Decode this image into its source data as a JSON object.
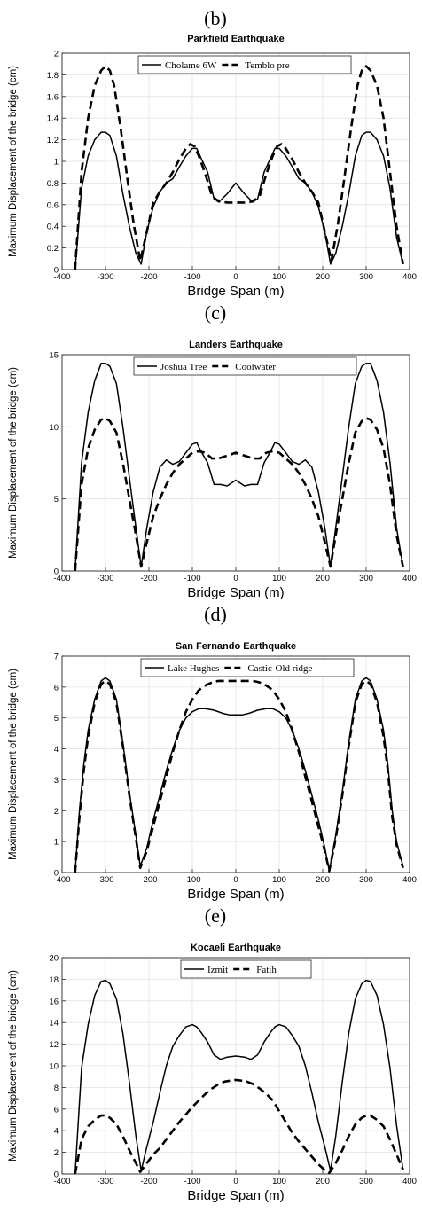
{
  "chart_data": [
    {
      "type": "line",
      "panel_label": "(b)",
      "title": "Parkfield Earthquake",
      "xlabel": "Bridge Span (m)",
      "ylabel": "Maximum Displacement of the bridge (cm)",
      "xlim": [
        -400,
        400
      ],
      "ylim": [
        0,
        2
      ],
      "xticks": [
        -400,
        -300,
        -200,
        -100,
        0,
        100,
        200,
        300,
        400
      ],
      "yticks": [
        0,
        0.2,
        0.4,
        0.6,
        0.8,
        1,
        1.2,
        1.4,
        1.6,
        1.8,
        2
      ],
      "ytick_labels": [
        "0",
        "0.2",
        "0.4",
        "0.6",
        "0.8",
        "1",
        "1.2",
        "1.4",
        "1.6",
        "1.8",
        "2"
      ],
      "grid": true,
      "legend": "top-center",
      "series": [
        {
          "name": "Cholame 6W",
          "style": "solid",
          "x": [
            -370,
            -355,
            -340,
            -325,
            -310,
            -300,
            -290,
            -275,
            -260,
            -245,
            -230,
            -218,
            -205,
            -190,
            -175,
            -160,
            -145,
            -130,
            -115,
            -100,
            -90,
            -80,
            -65,
            -50,
            -35,
            -20,
            0,
            20,
            35,
            50,
            65,
            80,
            90,
            100,
            115,
            130,
            145,
            160,
            175,
            190,
            205,
            218,
            230,
            245,
            260,
            275,
            290,
            300,
            310,
            325,
            340,
            355,
            370,
            385
          ],
          "y": [
            0,
            0.75,
            1.05,
            1.2,
            1.27,
            1.27,
            1.24,
            1.05,
            0.7,
            0.4,
            0.15,
            0.05,
            0.35,
            0.58,
            0.72,
            0.8,
            0.84,
            0.95,
            1.05,
            1.12,
            1.12,
            1.03,
            0.9,
            0.65,
            0.64,
            0.7,
            0.8,
            0.7,
            0.64,
            0.65,
            0.9,
            1.03,
            1.12,
            1.12,
            1.05,
            0.95,
            0.84,
            0.8,
            0.72,
            0.58,
            0.35,
            0.05,
            0.15,
            0.4,
            0.7,
            1.05,
            1.24,
            1.27,
            1.27,
            1.2,
            1.05,
            0.75,
            0.3,
            0.05
          ]
        },
        {
          "name": "Temblo pre",
          "style": "dashed",
          "x": [
            -370,
            -355,
            -340,
            -325,
            -310,
            -300,
            -290,
            -280,
            -265,
            -250,
            -235,
            -220,
            -205,
            -190,
            -175,
            -160,
            -145,
            -130,
            -115,
            -105,
            -95,
            -85,
            -70,
            -55,
            -40,
            -20,
            0,
            20,
            40,
            55,
            70,
            85,
            95,
            105,
            115,
            130,
            145,
            160,
            175,
            190,
            205,
            220,
            235,
            250,
            265,
            280,
            290,
            300,
            310,
            325,
            340,
            355,
            370,
            385
          ],
          "y": [
            0,
            0.9,
            1.4,
            1.7,
            1.84,
            1.88,
            1.84,
            1.7,
            1.3,
            0.85,
            0.42,
            0.08,
            0.35,
            0.62,
            0.72,
            0.8,
            0.9,
            1.02,
            1.12,
            1.16,
            1.14,
            1.05,
            0.88,
            0.68,
            0.63,
            0.62,
            0.62,
            0.62,
            0.63,
            0.68,
            0.88,
            1.05,
            1.14,
            1.16,
            1.12,
            1.02,
            0.9,
            0.8,
            0.72,
            0.62,
            0.35,
            0.08,
            0.42,
            0.85,
            1.3,
            1.7,
            1.84,
            1.88,
            1.84,
            1.7,
            1.4,
            0.9,
            0.4,
            0.05
          ]
        }
      ]
    },
    {
      "type": "line",
      "panel_label": "(c)",
      "title": "Landers Earthquake",
      "xlabel": "Bridge Span (m)",
      "ylabel": "Maximum Displacement of the bridge (cm)",
      "xlim": [
        -400,
        400
      ],
      "ylim": [
        0,
        15
      ],
      "xticks": [
        -400,
        -300,
        -200,
        -100,
        0,
        100,
        200,
        300,
        400
      ],
      "yticks": [
        0,
        5,
        10,
        15
      ],
      "ytick_labels": [
        "0",
        "5",
        "10",
        "15"
      ],
      "grid": true,
      "legend": "top-center",
      "series": [
        {
          "name": "Joshua Tree",
          "style": "solid",
          "x": [
            -370,
            -355,
            -340,
            -325,
            -310,
            -300,
            -290,
            -275,
            -260,
            -245,
            -230,
            -218,
            -205,
            -190,
            -175,
            -160,
            -145,
            -130,
            -115,
            -100,
            -90,
            -80,
            -65,
            -50,
            -35,
            -20,
            0,
            20,
            35,
            50,
            65,
            80,
            90,
            100,
            115,
            130,
            145,
            160,
            175,
            190,
            205,
            218,
            230,
            245,
            260,
            275,
            290,
            300,
            310,
            325,
            340,
            355,
            370,
            385
          ],
          "y": [
            0,
            7.5,
            11,
            13.2,
            14.4,
            14.4,
            14.2,
            13,
            10,
            6.5,
            3,
            0.3,
            3,
            5.5,
            7.2,
            7.7,
            7.4,
            7.6,
            8.2,
            8.8,
            8.9,
            8.3,
            7.5,
            6,
            6,
            5.9,
            6.3,
            5.9,
            6,
            6,
            7.5,
            8.3,
            8.9,
            8.8,
            8.2,
            7.6,
            7.4,
            7.7,
            7.2,
            5.5,
            3,
            0.3,
            3,
            6.5,
            10,
            13,
            14.2,
            14.4,
            14.4,
            13.2,
            11,
            7.5,
            3,
            0.3
          ]
        },
        {
          "name": "Coolwater",
          "style": "dashed",
          "x": [
            -370,
            -355,
            -340,
            -325,
            -310,
            -300,
            -290,
            -275,
            -260,
            -245,
            -230,
            -218,
            -205,
            -190,
            -175,
            -160,
            -145,
            -130,
            -115,
            -100,
            -85,
            -70,
            -55,
            -40,
            -20,
            0,
            20,
            40,
            55,
            70,
            85,
            100,
            115,
            130,
            145,
            160,
            175,
            190,
            205,
            218,
            230,
            245,
            260,
            275,
            290,
            300,
            310,
            325,
            340,
            355,
            370,
            385
          ],
          "y": [
            0,
            6,
            8.5,
            9.8,
            10.5,
            10.6,
            10.4,
            9.6,
            7.5,
            5,
            2.5,
            0.3,
            2,
            3.8,
            5,
            6,
            6.8,
            7.4,
            7.8,
            8.2,
            8.3,
            8.2,
            7.8,
            7.8,
            8,
            8.2,
            8,
            7.8,
            7.8,
            8.2,
            8.3,
            8.2,
            7.8,
            7.4,
            6.8,
            6,
            5,
            3.8,
            2,
            0.3,
            2.5,
            5,
            7.5,
            9.6,
            10.4,
            10.6,
            10.5,
            9.8,
            8.5,
            6,
            2.5,
            0.3
          ]
        }
      ]
    },
    {
      "type": "line",
      "panel_label": "(d)",
      "title": "San Fernando Earthquake",
      "xlabel": "Bridge Span (m)",
      "ylabel": "Maximum Displacement of the bridge (cm)",
      "xlim": [
        -400,
        400
      ],
      "ylim": [
        0,
        7
      ],
      "xticks": [
        -400,
        -300,
        -200,
        -100,
        0,
        100,
        200,
        300,
        400
      ],
      "yticks": [
        0,
        1,
        2,
        3,
        4,
        5,
        6,
        7
      ],
      "ytick_labels": [
        "0",
        "1",
        "2",
        "3",
        "4",
        "5",
        "6",
        "7"
      ],
      "grid": true,
      "legend": "top-center",
      "series": [
        {
          "name": "Lake Hughes",
          "style": "solid",
          "x": [
            -370,
            -360,
            -350,
            -340,
            -325,
            -310,
            -300,
            -290,
            -275,
            -260,
            -245,
            -230,
            -220,
            -205,
            -190,
            -175,
            -160,
            -145,
            -130,
            -115,
            -100,
            -85,
            -70,
            -50,
            -30,
            -15,
            0,
            15,
            30,
            50,
            70,
            85,
            100,
            115,
            130,
            145,
            160,
            175,
            190,
            205,
            215,
            230,
            245,
            260,
            275,
            290,
            300,
            310,
            325,
            340,
            350,
            360,
            370,
            385
          ],
          "y": [
            0,
            2,
            3.5,
            4.6,
            5.6,
            6.2,
            6.3,
            6.2,
            5.6,
            4.2,
            2.6,
            1.2,
            0.2,
            0.8,
            1.7,
            2.5,
            3.3,
            4,
            4.6,
            5,
            5.2,
            5.3,
            5.3,
            5.25,
            5.15,
            5.1,
            5.1,
            5.1,
            5.15,
            5.25,
            5.3,
            5.3,
            5.2,
            5,
            4.6,
            4,
            3.3,
            2.5,
            1.7,
            0.8,
            0.05,
            1.2,
            2.6,
            4.2,
            5.6,
            6.2,
            6.3,
            6.2,
            5.6,
            4.6,
            3.5,
            2,
            1,
            0.2
          ]
        },
        {
          "name": "Castic-Old ridge",
          "style": "dashed",
          "x": [
            -370,
            -360,
            -350,
            -340,
            -325,
            -310,
            -300,
            -290,
            -275,
            -260,
            -245,
            -230,
            -220,
            -205,
            -190,
            -175,
            -160,
            -145,
            -130,
            -115,
            -100,
            -85,
            -70,
            -55,
            -40,
            -25,
            -10,
            0,
            10,
            25,
            40,
            55,
            70,
            85,
            100,
            115,
            130,
            145,
            160,
            175,
            190,
            205,
            215,
            230,
            245,
            260,
            275,
            290,
            300,
            310,
            325,
            340,
            350,
            360,
            370,
            385
          ],
          "y": [
            0,
            1.8,
            3.3,
            4.4,
            5.5,
            6.1,
            6.2,
            6.1,
            5.5,
            4.1,
            2.5,
            1.1,
            0.15,
            0.7,
            1.5,
            2.3,
            3.1,
            3.9,
            4.6,
            5.2,
            5.6,
            5.9,
            6.05,
            6.15,
            6.2,
            6.2,
            6.2,
            6.2,
            6.2,
            6.2,
            6.2,
            6.15,
            6.05,
            5.9,
            5.6,
            5.2,
            4.6,
            3.9,
            3.1,
            2.3,
            1.5,
            0.7,
            0.05,
            1.1,
            2.5,
            4.1,
            5.5,
            6.1,
            6.2,
            6.1,
            5.5,
            4.4,
            3.3,
            1.8,
            0.9,
            0.15
          ]
        }
      ]
    },
    {
      "type": "line",
      "panel_label": "(e)",
      "title": "Kocaeli Earthquake",
      "xlabel": "Bridge Span (m)",
      "ylabel": "Maximum Displacement of the bridge (cm)",
      "xlim": [
        -400,
        400
      ],
      "ylim": [
        0,
        20
      ],
      "xticks": [
        -400,
        -300,
        -200,
        -100,
        0,
        100,
        200,
        300,
        400
      ],
      "yticks": [
        0,
        2,
        4,
        6,
        8,
        10,
        12,
        14,
        16,
        18,
        20
      ],
      "ytick_labels": [
        "0",
        "2",
        "4",
        "6",
        "8",
        "10",
        "12",
        "14",
        "16",
        "18",
        "20"
      ],
      "grid": true,
      "legend": "top-center",
      "series": [
        {
          "name": "Izmit",
          "style": "solid",
          "x": [
            -370,
            -355,
            -340,
            -325,
            -310,
            -300,
            -290,
            -275,
            -260,
            -245,
            -230,
            -218,
            -205,
            -190,
            -175,
            -160,
            -145,
            -130,
            -115,
            -100,
            -90,
            -80,
            -65,
            -50,
            -35,
            -20,
            0,
            20,
            35,
            50,
            65,
            80,
            90,
            100,
            115,
            130,
            145,
            160,
            175,
            190,
            205,
            218,
            230,
            245,
            260,
            275,
            290,
            300,
            310,
            325,
            340,
            355,
            370,
            385
          ],
          "y": [
            0,
            9.8,
            13.8,
            16.5,
            17.8,
            17.9,
            17.6,
            16.2,
            13,
            8.5,
            3.5,
            0.3,
            2.5,
            4.8,
            7.5,
            10,
            11.8,
            12.8,
            13.6,
            13.8,
            13.6,
            13.1,
            12.2,
            11,
            10.6,
            10.8,
            10.9,
            10.8,
            10.6,
            11,
            12.2,
            13.1,
            13.6,
            13.8,
            13.6,
            12.8,
            11.8,
            10,
            7.5,
            4.8,
            2.5,
            0.3,
            3.5,
            8.5,
            13,
            16.2,
            17.6,
            17.9,
            17.8,
            16.5,
            13.8,
            9.8,
            4.5,
            0.4
          ]
        },
        {
          "name": "Fatih",
          "style": "dashed",
          "x": [
            -370,
            -355,
            -340,
            -325,
            -310,
            -300,
            -290,
            -275,
            -260,
            -245,
            -230,
            -220,
            -205,
            -190,
            -175,
            -160,
            -145,
            -130,
            -115,
            -100,
            -85,
            -70,
            -55,
            -40,
            -25,
            -10,
            0,
            10,
            25,
            40,
            55,
            70,
            85,
            100,
            115,
            130,
            145,
            160,
            175,
            190,
            205,
            215,
            230,
            245,
            260,
            275,
            290,
            300,
            310,
            325,
            340,
            355,
            370,
            385
          ],
          "y": [
            0,
            3.2,
            4.4,
            5,
            5.4,
            5.4,
            5.2,
            4.6,
            3.5,
            2.2,
            1,
            0.2,
            1,
            1.8,
            2.4,
            3.2,
            4,
            4.8,
            5.5,
            6.2,
            6.8,
            7.4,
            7.9,
            8.3,
            8.55,
            8.65,
            8.7,
            8.65,
            8.55,
            8.3,
            7.9,
            7.4,
            6.8,
            5.8,
            4.8,
            3.8,
            3,
            2.3,
            1.6,
            0.9,
            0.35,
            0.1,
            1,
            2.2,
            3.5,
            4.6,
            5.2,
            5.4,
            5.4,
            5,
            4.4,
            3.2,
            1.8,
            0.4
          ]
        }
      ]
    }
  ]
}
